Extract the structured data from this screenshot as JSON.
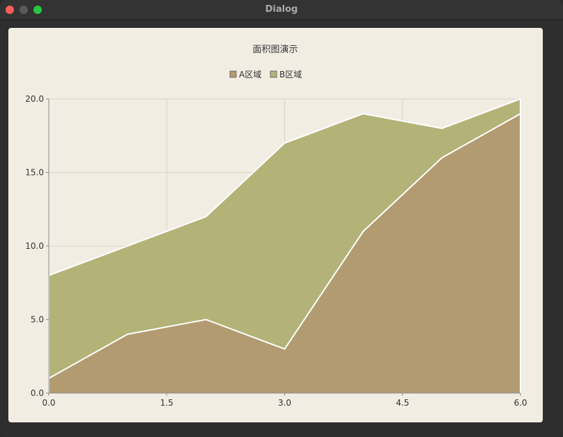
{
  "window": {
    "title": "Dialog"
  },
  "colors": {
    "series_a": "#b39b71",
    "series_b": "#b3b378",
    "background": "#f2ede3",
    "grid": "#d9d4cb",
    "outline": "#ffffff"
  },
  "chart_data": {
    "type": "area",
    "stacked": true,
    "title": "面积图演示",
    "legend_position": "top-center",
    "x": [
      0,
      1,
      2,
      3,
      4,
      5,
      6
    ],
    "series": [
      {
        "name": "A区域",
        "values": [
          1,
          4,
          5,
          3,
          11,
          16,
          19
        ]
      },
      {
        "name": "B区域",
        "upper": [
          8,
          10,
          12,
          17,
          19,
          18,
          20
        ]
      }
    ],
    "xlim": [
      0.0,
      6.0
    ],
    "ylim": [
      0.0,
      20.0
    ],
    "xticks": [
      "0.0",
      "1.5",
      "3.0",
      "4.5",
      "6.0"
    ],
    "yticks": [
      "0.0",
      "5.0",
      "10.0",
      "15.0",
      "20.0"
    ],
    "xlabel": "",
    "ylabel": "",
    "grid": true
  }
}
